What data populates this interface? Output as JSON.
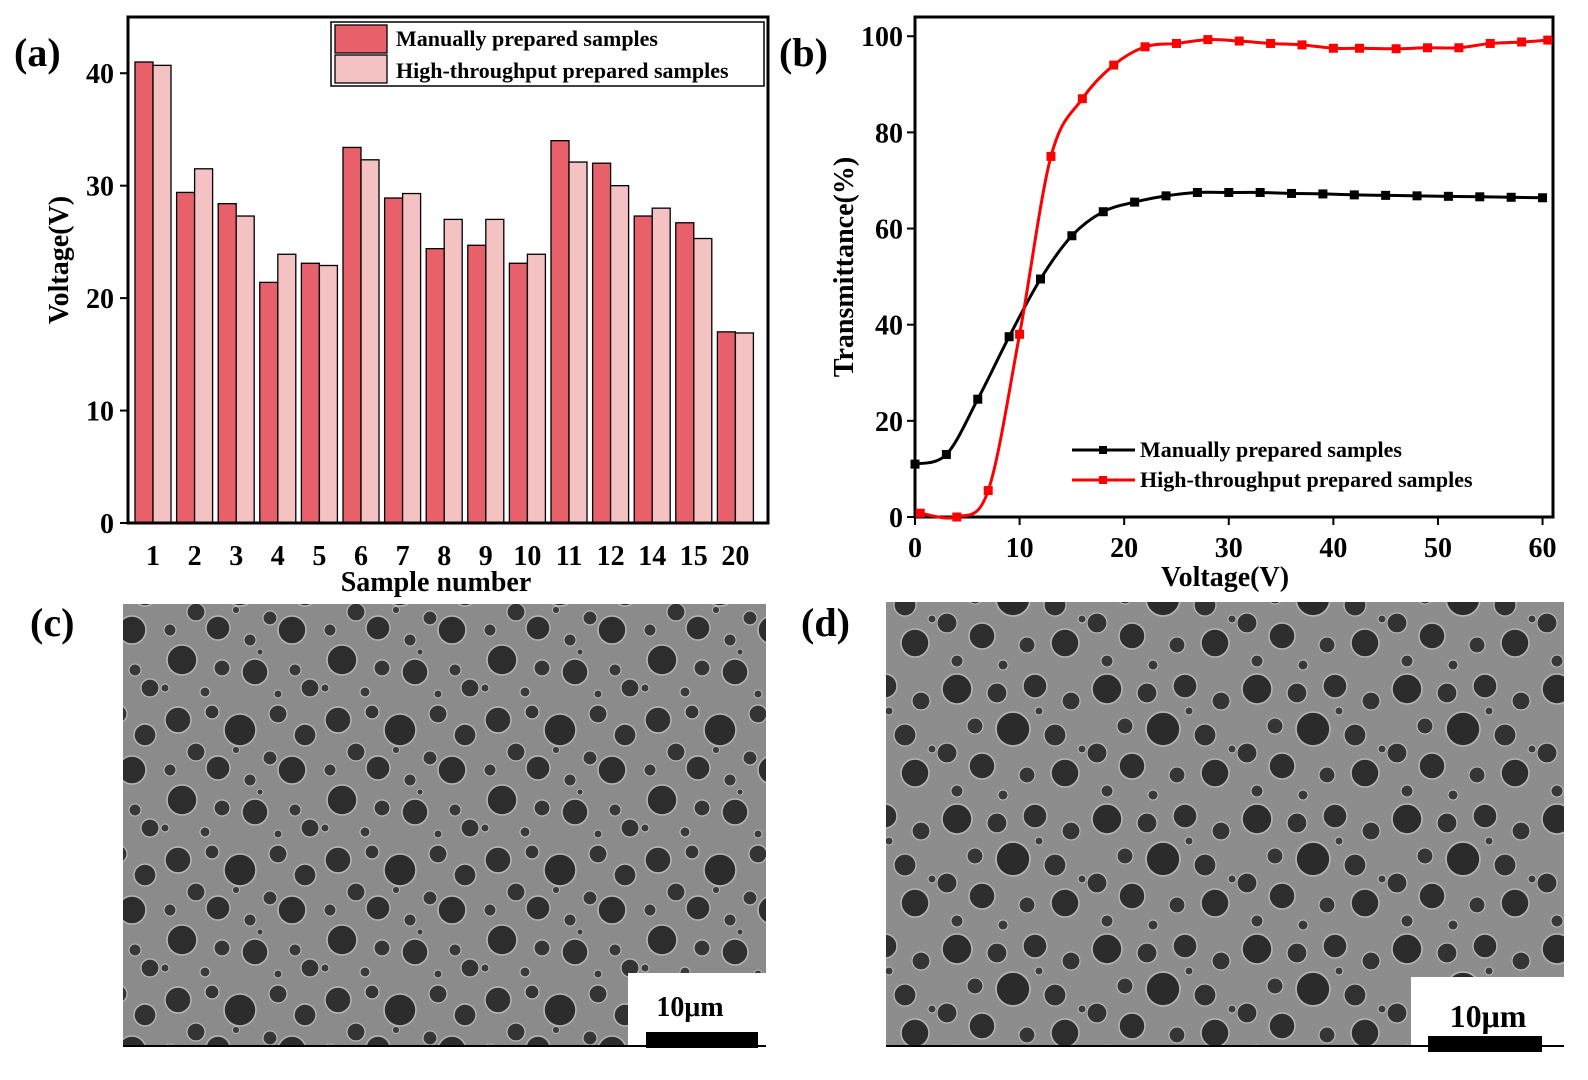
{
  "panels": {
    "a": {
      "label": "(a)"
    },
    "b": {
      "label": "(b)"
    },
    "c": {
      "label": "(c)",
      "scale_bar": "10μm"
    },
    "d": {
      "label": "(d)",
      "scale_bar": "10μm"
    }
  },
  "colors": {
    "manual_bar": "#e8606a",
    "htp_bar": "#f5c2c3",
    "manual_line": "#000000",
    "htp_line": "#ff0000",
    "sem_background": "#8a8a8a",
    "sem_pore": "#2f2f2f"
  },
  "chart_data": [
    {
      "type": "bar",
      "xlabel": "Sample number",
      "ylabel": "Voltage(V)",
      "ylim": [
        0,
        45
      ],
      "yticks": [
        0,
        10,
        20,
        30,
        40
      ],
      "ytick_labels": [
        "0",
        "10",
        "20",
        "30",
        "40"
      ],
      "legend_position": "top-right",
      "categories": [
        "1",
        "2",
        "3",
        "4",
        "5",
        "6",
        "7",
        "8",
        "9",
        "10",
        "11",
        "12",
        "14",
        "15",
        "20"
      ],
      "series": [
        {
          "name": "Manually prepared samples",
          "values": [
            41.0,
            29.4,
            28.4,
            21.4,
            23.1,
            33.4,
            28.9,
            24.4,
            24.7,
            23.1,
            34.0,
            32.0,
            27.3,
            26.7,
            17.0
          ]
        },
        {
          "name": "High-throughput prepared samples",
          "values": [
            40.7,
            31.5,
            27.3,
            23.9,
            22.9,
            32.3,
            29.3,
            27.0,
            27.0,
            23.9,
            32.1,
            30.0,
            28.0,
            25.3,
            16.9
          ]
        }
      ]
    },
    {
      "type": "line",
      "xlabel": "Voltage(V)",
      "ylabel": "Transmittance(%)",
      "xlim": [
        0,
        61
      ],
      "ylim": [
        0,
        104
      ],
      "xticks": [
        0,
        10,
        20,
        30,
        40,
        50,
        60
      ],
      "xtick_labels": [
        "0",
        "10",
        "20",
        "30",
        "40",
        "50",
        "60"
      ],
      "yticks": [
        0,
        20,
        40,
        60,
        80,
        100
      ],
      "ytick_labels": [
        "0",
        "20",
        "40",
        "60",
        "80",
        "100"
      ],
      "legend_position": "bottom-right",
      "series": [
        {
          "name": "Manually prepared samples",
          "x": [
            0,
            3,
            6,
            9,
            12,
            15,
            18,
            21,
            24,
            27,
            30,
            33,
            36,
            39,
            42,
            45,
            48,
            51,
            54,
            57,
            60
          ],
          "y": [
            11,
            13,
            24.5,
            37.5,
            49.5,
            58.5,
            63.5,
            65.5,
            66.8,
            67.5,
            67.5,
            67.5,
            67.3,
            67.2,
            67.0,
            66.9,
            66.8,
            66.7,
            66.6,
            66.5,
            66.4
          ]
        },
        {
          "name": "High-throughput prepared samples",
          "x": [
            0.5,
            4,
            7,
            10,
            13,
            16,
            19,
            22,
            25,
            28,
            31,
            34,
            37,
            40,
            42.5,
            46,
            49,
            52,
            55,
            58,
            60.5
          ],
          "y": [
            0.8,
            0,
            5.5,
            38,
            75,
            87,
            94,
            97.8,
            98.5,
            99.3,
            99.0,
            98.5,
            98.2,
            97.5,
            97.5,
            97.4,
            97.6,
            97.6,
            98.5,
            98.8,
            99.2
          ]
        }
      ]
    }
  ]
}
